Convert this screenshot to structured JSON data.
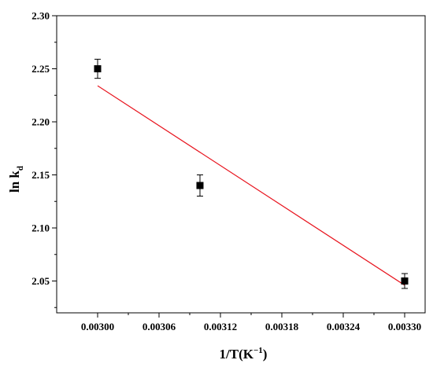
{
  "chart_data": {
    "type": "scatter",
    "title": "",
    "xlabel": "1/T(K",
    "xlabel_superscript": "−1",
    "xlabel_suffix": ")",
    "ylabel": "ln k",
    "ylabel_subscript": "d",
    "xlim": [
      0.00296,
      0.00332
    ],
    "ylim": [
      2.02,
      2.3
    ],
    "x_ticks": [
      0.003,
      0.00306,
      0.00312,
      0.00318,
      0.00324,
      0.0033
    ],
    "x_tick_labels": [
      "0.00300",
      "0.00306",
      "0.00312",
      "0.00318",
      "0.00324",
      "0.00330"
    ],
    "y_ticks": [
      2.05,
      2.1,
      2.15,
      2.2,
      2.25,
      2.3
    ],
    "y_tick_labels": [
      "2.05",
      "2.10",
      "2.15",
      "2.20",
      "2.25",
      "2.30"
    ],
    "grid": false,
    "series": [
      {
        "kind": "points_with_error",
        "color": "#000000",
        "marker": "square",
        "x": [
          0.003,
          0.0031,
          0.0033
        ],
        "y": [
          2.25,
          2.14,
          2.05
        ],
        "yerr": [
          0.009,
          0.01,
          0.007
        ]
      },
      {
        "kind": "fit_line",
        "color": "#e8141e",
        "x": [
          0.003,
          0.0033
        ],
        "y": [
          2.234,
          2.046
        ]
      }
    ]
  }
}
